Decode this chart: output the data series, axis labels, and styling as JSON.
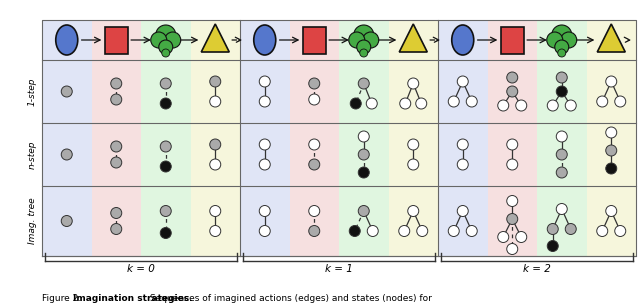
{
  "fig_width": 6.4,
  "fig_height": 3.08,
  "dpi": 100,
  "bg_color": "#ffffff",
  "col_colors": [
    "#c8d0f0",
    "#f0c8c8",
    "#c8f0c8",
    "#f0f0c0"
  ],
  "row_labels": [
    "1-step",
    "n-step",
    "Imag. tree"
  ],
  "k_labels": [
    "k = 0",
    "k = 1",
    "k = 2"
  ],
  "caption": "Figure 2: ",
  "caption_bold": "Imagination strategies.",
  "caption_rest": " Sequences of imagined actions (edges) and states (nodes) for",
  "G": "#aaaaaa",
  "B": "#111111",
  "W": "#ffffff",
  "node_ec": "#333333",
  "line_color": "#333333"
}
